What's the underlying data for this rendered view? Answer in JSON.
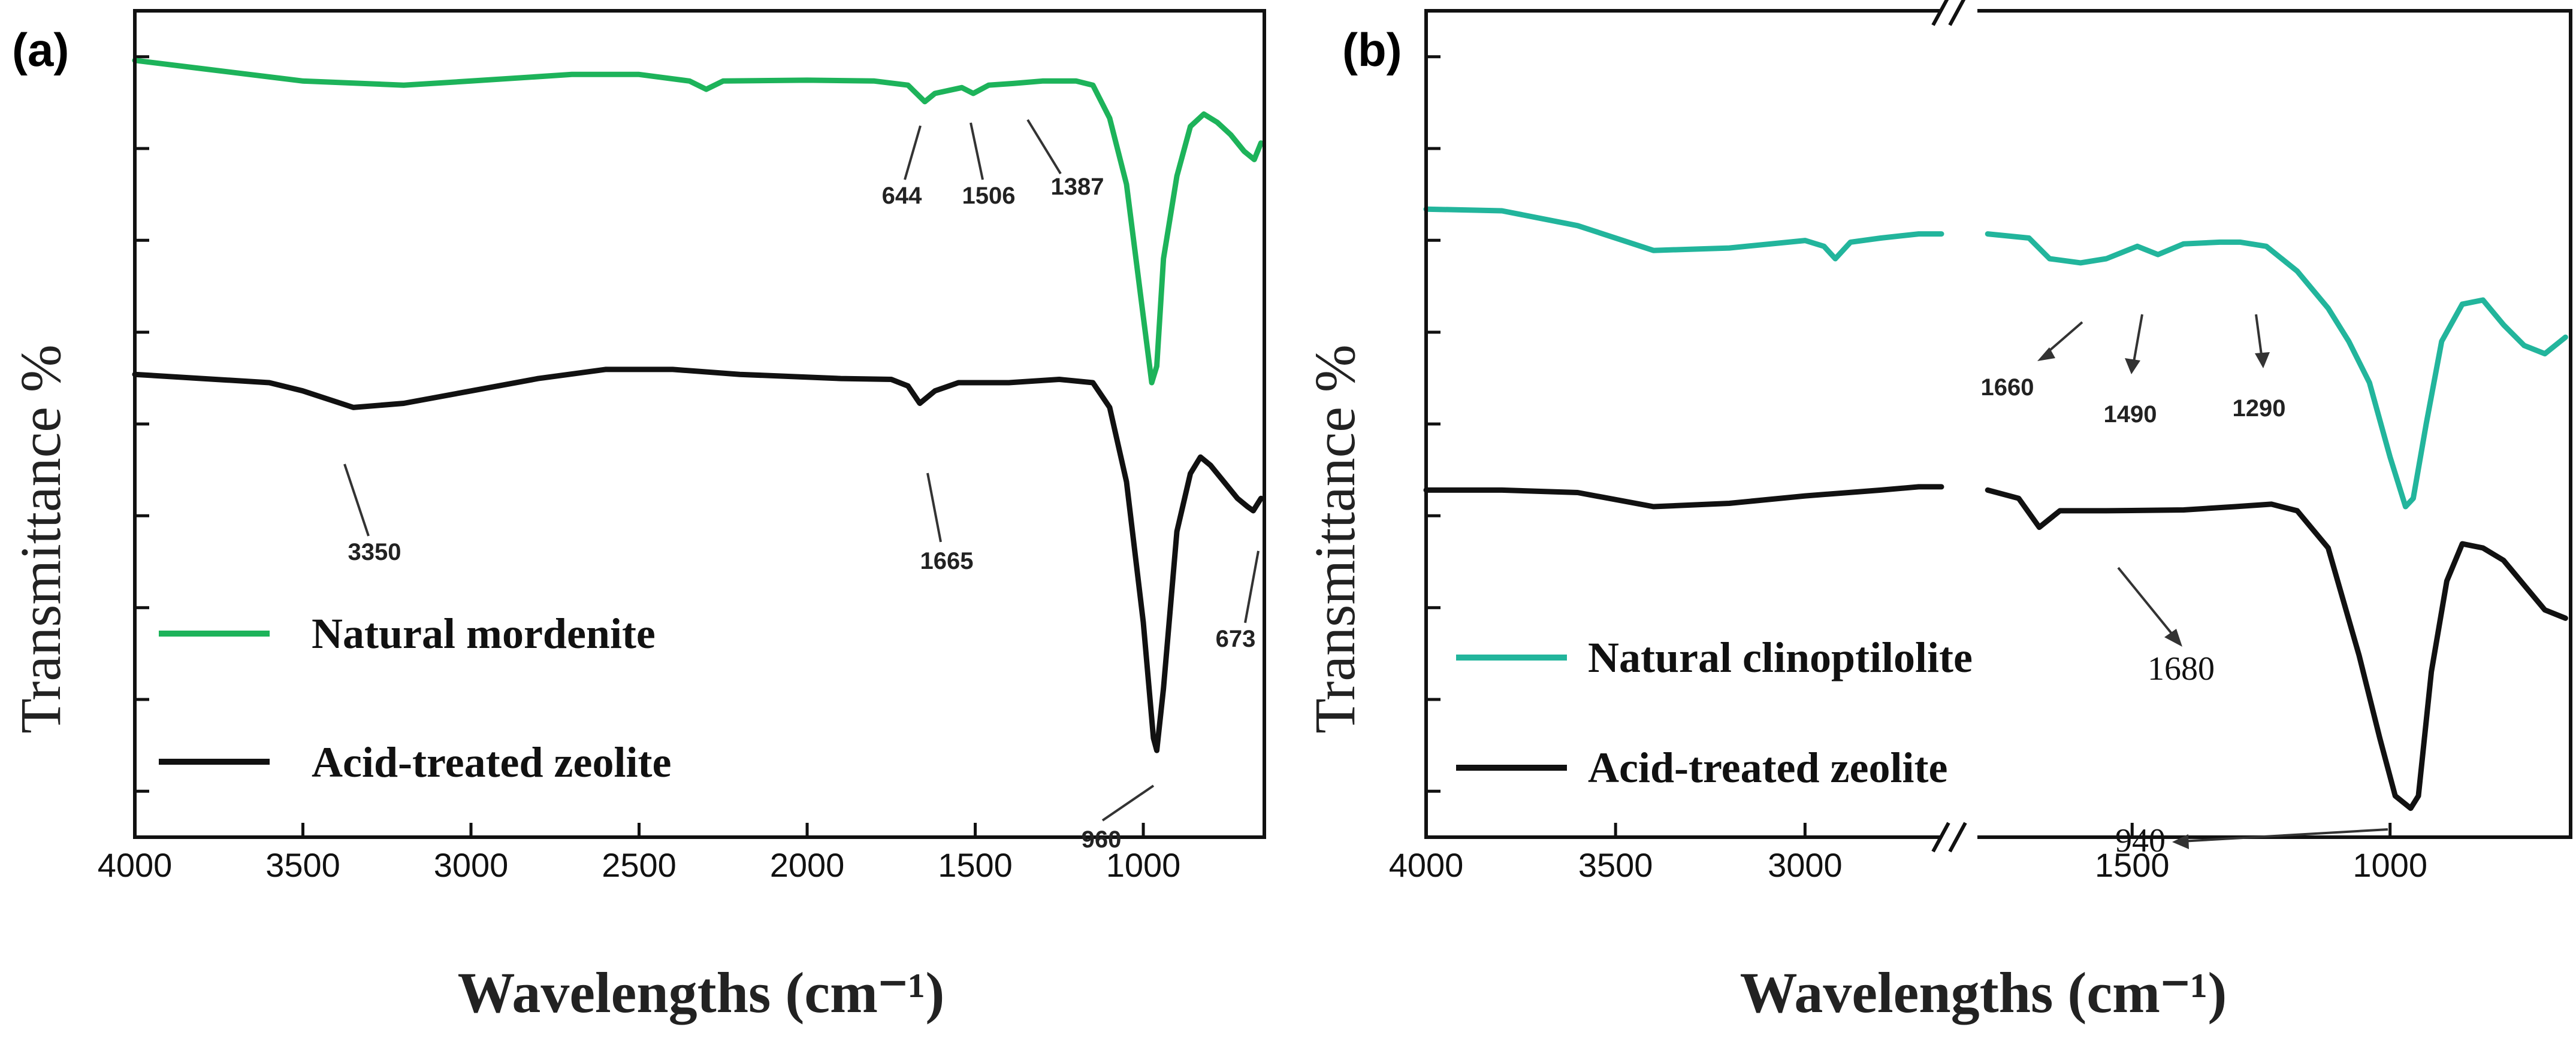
{
  "colors": {
    "green": "#1db35a",
    "teal": "#22b59c",
    "black": "#111111"
  },
  "chart_data": [
    {
      "type": "line",
      "panel_label": "(a)",
      "title": "",
      "xlabel": "Wavelengths (cm⁻¹)",
      "ylabel": "Transmittance %",
      "xlim": [
        4000,
        640
      ],
      "x_ticks": [
        "4000",
        "3500",
        "3000",
        "2500",
        "2000",
        "1500",
        "1000"
      ],
      "x_tick_values": [
        4000,
        3500,
        3000,
        2500,
        2000,
        1500,
        1000
      ],
      "ylim": [
        0,
        100
      ],
      "y_tick_count": 9,
      "legend": [
        {
          "label": "Natural mordenite",
          "color": "#1db35a"
        },
        {
          "label": "Acid-treated zeolite",
          "color": "#111111"
        }
      ],
      "series": [
        {
          "name": "Natural mordenite",
          "color": "#1db35a",
          "points": [
            [
              4000,
              94
            ],
            [
              3800,
              93
            ],
            [
              3500,
              91.5
            ],
            [
              3200,
              91
            ],
            [
              3000,
              91.5
            ],
            [
              2700,
              92.3
            ],
            [
              2500,
              92.3
            ],
            [
              2350,
              91.5
            ],
            [
              2300,
              90.5
            ],
            [
              2250,
              91.5
            ],
            [
              2000,
              91.6
            ],
            [
              1800,
              91.5
            ],
            [
              1700,
              91
            ],
            [
              1650,
              89
            ],
            [
              1620,
              90
            ],
            [
              1540,
              90.7
            ],
            [
              1506,
              90
            ],
            [
              1460,
              91
            ],
            [
              1387,
              91.2
            ],
            [
              1300,
              91.5
            ],
            [
              1200,
              91.5
            ],
            [
              1150,
              91
            ],
            [
              1100,
              87
            ],
            [
              1050,
              79
            ],
            [
              1000,
              63
            ],
            [
              975,
              55
            ],
            [
              960,
              57
            ],
            [
              940,
              70
            ],
            [
              900,
              80
            ],
            [
              860,
              86
            ],
            [
              820,
              87.5
            ],
            [
              780,
              86.5
            ],
            [
              740,
              85
            ],
            [
              700,
              83
            ],
            [
              670,
              82
            ],
            [
              650,
              84
            ]
          ]
        },
        {
          "name": "Acid-treated zeolite",
          "color": "#111111",
          "points": [
            [
              4000,
              56
            ],
            [
              3800,
              55.5
            ],
            [
              3600,
              55
            ],
            [
              3500,
              54
            ],
            [
              3350,
              52
            ],
            [
              3200,
              52.5
            ],
            [
              3000,
              54
            ],
            [
              2800,
              55.5
            ],
            [
              2600,
              56.6
            ],
            [
              2400,
              56.6
            ],
            [
              2200,
              56
            ],
            [
              1900,
              55.5
            ],
            [
              1750,
              55.4
            ],
            [
              1700,
              54.6
            ],
            [
              1665,
              52.5
            ],
            [
              1620,
              54
            ],
            [
              1550,
              55
            ],
            [
              1400,
              55
            ],
            [
              1250,
              55.4
            ],
            [
              1150,
              55
            ],
            [
              1100,
              52
            ],
            [
              1050,
              43
            ],
            [
              1000,
              26
            ],
            [
              970,
              12
            ],
            [
              960,
              10.5
            ],
            [
              940,
              18
            ],
            [
              900,
              37
            ],
            [
              860,
              44
            ],
            [
              830,
              46
            ],
            [
              800,
              45
            ],
            [
              760,
              43
            ],
            [
              720,
              41
            ],
            [
              690,
              40
            ],
            [
              673,
              39.5
            ],
            [
              650,
              41
            ]
          ]
        }
      ],
      "annotations": [
        {
          "text": "644",
          "x": 1644,
          "y": 89
        },
        {
          "text": "1506",
          "x": 1506,
          "y": 90
        },
        {
          "text": "1387",
          "x": 1387,
          "y": 91.2
        },
        {
          "text": "3350",
          "x": 3350,
          "y": 52
        },
        {
          "text": "1665",
          "x": 1665,
          "y": 52.5
        },
        {
          "text": "960",
          "x": 960,
          "y": 10.5
        },
        {
          "text": "673",
          "x": 673,
          "y": 39.5
        }
      ]
    },
    {
      "type": "line",
      "panel_label": "(b)",
      "title": "",
      "xlabel": "Wavelengths (cm⁻¹)",
      "ylabel": "Transmittance %",
      "broken_axis": true,
      "x_ticks": [
        "4000",
        "3500",
        "3000",
        "1500",
        "1000"
      ],
      "x_tick_values": [
        4000,
        3500,
        3000,
        1500,
        1000
      ],
      "segments": [
        {
          "from": 4000,
          "to": 2640
        },
        {
          "from": 1800,
          "to": 650
        }
      ],
      "ylim": [
        0,
        100
      ],
      "y_tick_count": 9,
      "legend": [
        {
          "label": "Natural clinoptilolite",
          "color": "#22b59c"
        },
        {
          "label": "Acid-treated zeolite",
          "color": "#111111"
        }
      ],
      "series": [
        {
          "name": "Natural clinoptilolite",
          "color": "#22b59c",
          "points": [
            [
              4000,
              76
            ],
            [
              3800,
              75.8
            ],
            [
              3600,
              74
            ],
            [
              3400,
              71
            ],
            [
              3200,
              71.3
            ],
            [
              3000,
              72.2
            ],
            [
              2950,
              71.5
            ],
            [
              2920,
              70
            ],
            [
              2880,
              72
            ],
            [
              2800,
              72.5
            ],
            [
              2700,
              73
            ],
            [
              2640,
              73
            ],
            null,
            [
              1780,
              73
            ],
            [
              1700,
              72.5
            ],
            [
              1660,
              70
            ],
            [
              1600,
              69.5
            ],
            [
              1550,
              70
            ],
            [
              1490,
              71.5
            ],
            [
              1450,
              70.5
            ],
            [
              1400,
              71.8
            ],
            [
              1330,
              72
            ],
            [
              1290,
              72
            ],
            [
              1240,
              71.5
            ],
            [
              1180,
              68.5
            ],
            [
              1120,
              64
            ],
            [
              1080,
              60
            ],
            [
              1040,
              55
            ],
            [
              1000,
              46
            ],
            [
              970,
              40
            ],
            [
              955,
              41
            ],
            [
              930,
              50
            ],
            [
              900,
              60
            ],
            [
              860,
              64.5
            ],
            [
              820,
              65
            ],
            [
              780,
              62
            ],
            [
              740,
              59.5
            ],
            [
              700,
              58.5
            ],
            [
              660,
              60.5
            ]
          ]
        },
        {
          "name": "Acid-treated zeolite",
          "color": "#111111",
          "points": [
            [
              4000,
              42
            ],
            [
              3800,
              42
            ],
            [
              3600,
              41.7
            ],
            [
              3400,
              40
            ],
            [
              3200,
              40.4
            ],
            [
              3000,
              41.3
            ],
            [
              2800,
              42
            ],
            [
              2700,
              42.4
            ],
            [
              2640,
              42.4
            ],
            null,
            [
              1780,
              42
            ],
            [
              1720,
              41
            ],
            [
              1680,
              37.5
            ],
            [
              1640,
              39.5
            ],
            [
              1550,
              39.5
            ],
            [
              1400,
              39.6
            ],
            [
              1300,
              40
            ],
            [
              1230,
              40.3
            ],
            [
              1180,
              39.5
            ],
            [
              1120,
              35
            ],
            [
              1060,
              22
            ],
            [
              1020,
              12
            ],
            [
              990,
              5
            ],
            [
              960,
              3.5
            ],
            [
              945,
              5
            ],
            [
              920,
              20
            ],
            [
              890,
              31
            ],
            [
              860,
              35.5
            ],
            [
              820,
              35
            ],
            [
              780,
              33.5
            ],
            [
              740,
              30.5
            ],
            [
              700,
              27.5
            ],
            [
              660,
              26.5
            ]
          ]
        }
      ],
      "annotations": [
        {
          "text": "1660",
          "x": 1660,
          "y": 70
        },
        {
          "text": "1490",
          "x": 1490,
          "y": 71.5
        },
        {
          "text": "1290",
          "x": 1290,
          "y": 72
        },
        {
          "text": "1680",
          "x": 1680,
          "y": 37.5
        },
        {
          "text": "940",
          "x": 955,
          "y": 3.5
        }
      ]
    }
  ]
}
